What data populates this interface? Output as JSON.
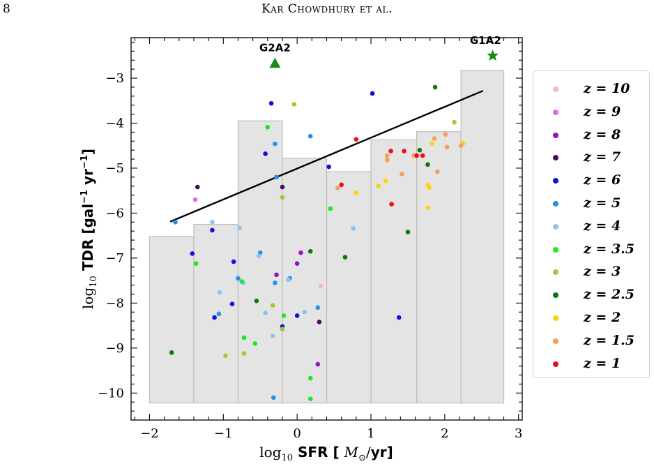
{
  "page_header": {
    "page_number": "8",
    "running_head": "Kar Chowdhury et al."
  },
  "chart_data": {
    "type": "scatter",
    "xlabel": "log10 SFR [ M⊙/yr]",
    "ylabel": "log10 TDR [gal−1 yr−1]",
    "xlim": [
      -2.25,
      3.05
    ],
    "ylim": [
      -10.6,
      -2.1
    ],
    "x_ticks": [
      -2,
      -1,
      0,
      1,
      2,
      3
    ],
    "x_tick_labels": [
      "−2",
      "−1",
      "0",
      "1",
      "2",
      "3"
    ],
    "y_ticks": [
      -10,
      -9,
      -8,
      -7,
      -6,
      -5,
      -4,
      -3
    ],
    "y_tick_labels": [
      "−10",
      "−9",
      "−8",
      "−7",
      "−6",
      "−5",
      "−4",
      "−3"
    ],
    "grid": false,
    "legend_position": "outside-right",
    "histogram_bars": [
      {
        "x0": -2.0,
        "x1": -1.4,
        "top": -6.52
      },
      {
        "x0": -1.4,
        "x1": -0.8,
        "top": -6.25
      },
      {
        "x0": -0.8,
        "x1": -0.2,
        "top": -3.95
      },
      {
        "x0": -0.2,
        "x1": 0.4,
        "top": -4.78
      },
      {
        "x0": 0.4,
        "x1": 1.0,
        "top": -5.08
      },
      {
        "x0": 1.0,
        "x1": 1.62,
        "top": -4.37
      },
      {
        "x0": 1.62,
        "x1": 2.22,
        "top": -4.19
      },
      {
        "x0": 2.22,
        "x1": 2.8,
        "top": -2.83
      }
    ],
    "histogram_floor": -10.22,
    "histogram_color": "#e4e4e4",
    "fit_line": {
      "x": [
        -1.72,
        2.52
      ],
      "y": [
        -6.19,
        -3.28
      ],
      "color": "#000000"
    },
    "annotations": [
      {
        "label": "G2A2",
        "x": -0.3,
        "y": -2.67,
        "marker": "triangle",
        "color": "#1a8a1a"
      },
      {
        "label": "G1A2",
        "x": 2.65,
        "y": -2.5,
        "marker": "star",
        "color": "#1a8a1a"
      }
    ],
    "series": [
      {
        "name": "z = 10",
        "color": "#f4b8c2",
        "points": [
          [
            0.32,
            -7.62
          ]
        ]
      },
      {
        "name": "z = 9",
        "color": "#e86ae0",
        "points": [
          [
            -1.38,
            -5.7
          ]
        ]
      },
      {
        "name": "z = 8",
        "color": "#9a10c8",
        "points": [
          [
            -0.28,
            -7.37
          ],
          [
            0.05,
            -6.88
          ],
          [
            0.0,
            -7.12
          ],
          [
            0.28,
            -9.36
          ]
        ]
      },
      {
        "name": "z = 7",
        "color": "#4b0a5e",
        "points": [
          [
            -1.35,
            -5.42
          ],
          [
            -0.2,
            -5.42
          ],
          [
            0.3,
            -8.42
          ]
        ]
      },
      {
        "name": "z = 6",
        "color": "#1010e0",
        "points": [
          [
            -1.42,
            -6.9
          ],
          [
            -1.15,
            -6.38
          ],
          [
            -1.12,
            -8.32
          ],
          [
            -0.88,
            -8.02
          ],
          [
            -0.86,
            -7.08
          ],
          [
            -0.43,
            -4.68
          ],
          [
            -0.35,
            -3.56
          ],
          [
            -0.2,
            -8.52
          ],
          [
            0.0,
            -8.28
          ],
          [
            0.43,
            -4.97
          ],
          [
            1.02,
            -3.34
          ],
          [
            1.38,
            -8.32
          ]
        ]
      },
      {
        "name": "z = 5",
        "color": "#2a8fe8",
        "points": [
          [
            -1.65,
            -6.2
          ],
          [
            -1.06,
            -8.24
          ],
          [
            -0.8,
            -7.45
          ],
          [
            -0.5,
            -6.88
          ],
          [
            -0.3,
            -4.46
          ],
          [
            -0.3,
            -7.55
          ],
          [
            -0.1,
            -7.45
          ],
          [
            0.18,
            -4.29
          ],
          [
            0.28,
            -8.1
          ],
          [
            -0.32,
            -10.1
          ],
          [
            -0.28,
            -5.2
          ]
        ]
      },
      {
        "name": "z = 4",
        "color": "#8ec4f2",
        "points": [
          [
            -1.15,
            -6.2
          ],
          [
            -1.05,
            -7.76
          ],
          [
            -0.78,
            -6.33
          ],
          [
            -0.73,
            -7.55
          ],
          [
            -0.52,
            -6.95
          ],
          [
            -0.43,
            -8.22
          ],
          [
            -0.33,
            -8.73
          ],
          [
            -0.12,
            -7.48
          ],
          [
            0.1,
            -8.2
          ],
          [
            0.76,
            -6.34
          ]
        ]
      },
      {
        "name": "z = 3.5",
        "color": "#1ee81e",
        "points": [
          [
            -1.37,
            -7.12
          ],
          [
            -0.75,
            -7.52
          ],
          [
            -0.72,
            -8.77
          ],
          [
            -0.57,
            -8.9
          ],
          [
            -0.4,
            -4.09
          ],
          [
            -0.18,
            -8.28
          ],
          [
            0.18,
            -9.67
          ],
          [
            0.18,
            -10.13
          ],
          [
            0.45,
            -5.9
          ]
        ]
      },
      {
        "name": "z = 3",
        "color": "#9acd32",
        "points": [
          [
            -0.97,
            -9.17
          ],
          [
            -0.72,
            -9.12
          ],
          [
            -0.33,
            -8.05
          ],
          [
            -0.2,
            -5.65
          ],
          [
            -0.2,
            -8.58
          ],
          [
            -0.04,
            -3.58
          ],
          [
            2.13,
            -3.98
          ]
        ]
      },
      {
        "name": "z = 2.5",
        "color": "#0a7a0a",
        "points": [
          [
            -1.7,
            -9.1
          ],
          [
            -0.55,
            -7.95
          ],
          [
            0.18,
            -6.85
          ],
          [
            0.65,
            -6.98
          ],
          [
            1.5,
            -6.42
          ],
          [
            1.66,
            -4.6
          ],
          [
            1.77,
            -4.92
          ],
          [
            1.87,
            -3.2
          ]
        ]
      },
      {
        "name": "z = 2",
        "color": "#ffd400",
        "points": [
          [
            0.8,
            -5.55
          ],
          [
            1.1,
            -5.4
          ],
          [
            1.2,
            -5.28
          ],
          [
            1.77,
            -5.38
          ],
          [
            1.79,
            -5.43
          ],
          [
            1.77,
            -5.88
          ],
          [
            1.83,
            -4.45
          ],
          [
            2.25,
            -4.45
          ]
        ]
      },
      {
        "name": "z = 1.5",
        "color": "#f0a060",
        "points": [
          [
            0.55,
            -5.44
          ],
          [
            1.22,
            -4.72
          ],
          [
            1.22,
            -4.82
          ],
          [
            1.42,
            -5.13
          ],
          [
            1.58,
            -4.72
          ],
          [
            1.86,
            -4.34
          ],
          [
            1.9,
            -5.08
          ],
          [
            2.01,
            -4.25
          ],
          [
            2.03,
            -4.53
          ],
          [
            2.22,
            -4.5
          ]
        ]
      },
      {
        "name": "z = 1",
        "color": "#ee1010",
        "points": [
          [
            0.6,
            -5.37
          ],
          [
            0.8,
            -4.36
          ],
          [
            1.27,
            -4.62
          ],
          [
            1.28,
            -5.8
          ],
          [
            1.45,
            -4.62
          ],
          [
            1.62,
            -4.72
          ],
          [
            1.7,
            -4.72
          ]
        ]
      }
    ]
  }
}
